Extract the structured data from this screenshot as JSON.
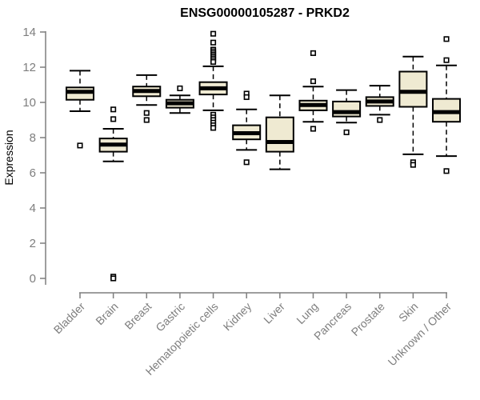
{
  "chart_data": {
    "type": "boxplot",
    "title": "ENSG00000105287 - PRKD2",
    "ylabel": "Expression",
    "xlabel": "",
    "ylim": [
      0,
      14
    ],
    "yticks": [
      0,
      2,
      4,
      6,
      8,
      10,
      12,
      14
    ],
    "grid": false,
    "legend": "none",
    "categories": [
      "Bladder",
      "Brain",
      "Breast",
      "Gastric",
      "Hematopoietic cells",
      "Kidney",
      "Liver",
      "Lung",
      "Pancreas",
      "Prostate",
      "Skin",
      "Unknown / Other"
    ],
    "series": [
      {
        "name": "Bladder",
        "whisker_low": 9.5,
        "q1": 10.15,
        "median": 10.6,
        "q3": 10.85,
        "whisker_high": 11.8,
        "outliers_low": [
          7.55
        ],
        "outliers_high": []
      },
      {
        "name": "Brain",
        "whisker_low": 6.65,
        "q1": 7.2,
        "median": 7.6,
        "q3": 7.95,
        "whisker_high": 8.5,
        "outliers_low": [
          0.1,
          0.0
        ],
        "outliers_high": [
          9.6,
          9.05
        ]
      },
      {
        "name": "Breast",
        "whisker_low": 9.85,
        "q1": 10.35,
        "median": 10.65,
        "q3": 10.9,
        "whisker_high": 11.55,
        "outliers_low": [
          9.4,
          9.0
        ],
        "outliers_high": []
      },
      {
        "name": "Gastric",
        "whisker_low": 9.4,
        "q1": 9.7,
        "median": 9.95,
        "q3": 10.15,
        "whisker_high": 10.4,
        "outliers_low": [],
        "outliers_high": [
          10.8
        ]
      },
      {
        "name": "Hematopoietic cells",
        "whisker_low": 9.55,
        "q1": 10.45,
        "median": 10.8,
        "q3": 11.15,
        "whisker_high": 12.05,
        "outliers_low": [
          9.3,
          9.15,
          9.0,
          8.85,
          8.7,
          8.55
        ],
        "outliers_high": [
          13.9,
          13.4,
          13.0,
          12.9,
          12.8,
          12.7,
          12.6,
          12.5,
          12.4,
          12.3
        ]
      },
      {
        "name": "Kidney",
        "whisker_low": 7.3,
        "q1": 7.9,
        "median": 8.25,
        "q3": 8.7,
        "whisker_high": 9.6,
        "outliers_low": [
          6.6
        ],
        "outliers_high": [
          10.5,
          10.3
        ]
      },
      {
        "name": "Liver",
        "whisker_low": 6.2,
        "q1": 7.2,
        "median": 7.75,
        "q3": 9.15,
        "whisker_high": 10.4,
        "outliers_low": [],
        "outliers_high": []
      },
      {
        "name": "Lung",
        "whisker_low": 8.9,
        "q1": 9.55,
        "median": 9.85,
        "q3": 10.1,
        "whisker_high": 10.9,
        "outliers_low": [
          8.5
        ],
        "outliers_high": [
          12.8,
          11.2
        ]
      },
      {
        "name": "Pancreas",
        "whisker_low": 8.85,
        "q1": 9.2,
        "median": 9.45,
        "q3": 10.05,
        "whisker_high": 10.7,
        "outliers_low": [
          8.3
        ],
        "outliers_high": []
      },
      {
        "name": "Prostate",
        "whisker_low": 9.3,
        "q1": 9.8,
        "median": 10.05,
        "q3": 10.3,
        "whisker_high": 10.95,
        "outliers_low": [
          9.0
        ],
        "outliers_high": []
      },
      {
        "name": "Skin",
        "whisker_low": 7.05,
        "q1": 9.75,
        "median": 10.6,
        "q3": 11.75,
        "whisker_high": 12.6,
        "outliers_low": [
          6.6,
          6.45
        ],
        "outliers_high": []
      },
      {
        "name": "Unknown / Other",
        "whisker_low": 6.95,
        "q1": 8.9,
        "median": 9.45,
        "q3": 10.2,
        "whisker_high": 12.1,
        "outliers_low": [
          6.1
        ],
        "outliers_high": [
          13.6,
          12.4
        ]
      }
    ],
    "colors": {
      "box_fill": "#EFEAD2",
      "box_stroke": "#000000",
      "median": "#000000",
      "outlier_stroke": "#000000",
      "outlier_fill": "#FFFFFF",
      "axis": "#7E7E7E",
      "tick_label": "#7E7E7E",
      "title": "#000000"
    }
  }
}
